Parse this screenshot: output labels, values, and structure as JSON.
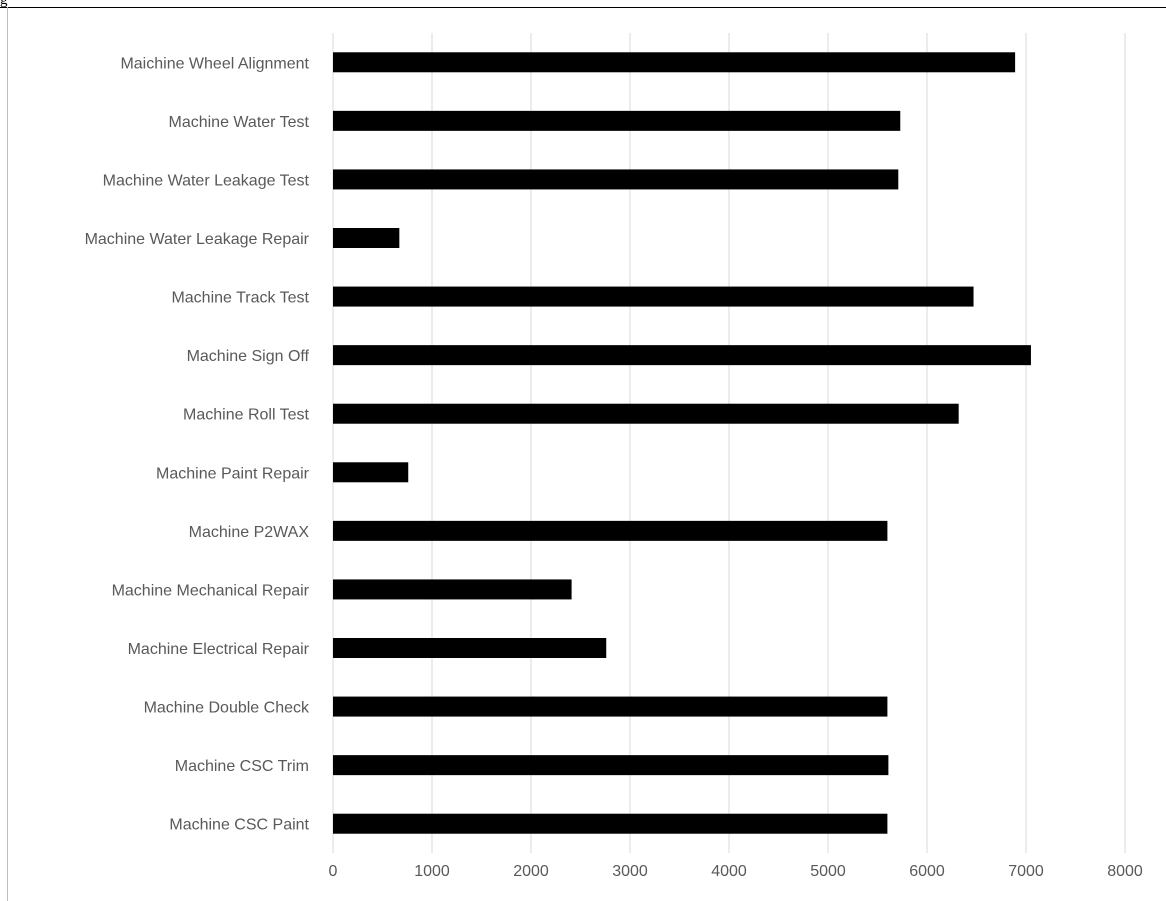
{
  "page": {
    "top_fragment": "g"
  },
  "chart_data": {
    "type": "bar",
    "orientation": "horizontal",
    "title": "",
    "xlabel": "",
    "ylabel": "",
    "categories": [
      "Maichine Wheel Alignment",
      "Machine Water Test",
      "Machine Water Leakage Test",
      "Machine Water Leakage Repair",
      "Machine Track Test",
      "Machine Sign Off",
      "Machine Roll Test",
      "Machine Paint Repair",
      "Machine P2WAX",
      "Machine Mechanical Repair",
      "Machine Electrical Repair",
      "Machine Double Check",
      "Machine CSC Trim",
      "Machine CSC Paint"
    ],
    "values": [
      6890,
      5730,
      5710,
      670,
      6470,
      7050,
      6320,
      760,
      5600,
      2410,
      2760,
      5600,
      5610,
      5600
    ],
    "xlim": [
      0,
      8000
    ],
    "xticks": [
      "0",
      "1000",
      "2000",
      "3000",
      "4000",
      "5000",
      "6000",
      "7000",
      "8000"
    ],
    "grid": true,
    "legend": "none",
    "colors": {
      "bar": "#000000",
      "grid": "#d9d9d9",
      "text": "#595959"
    }
  }
}
